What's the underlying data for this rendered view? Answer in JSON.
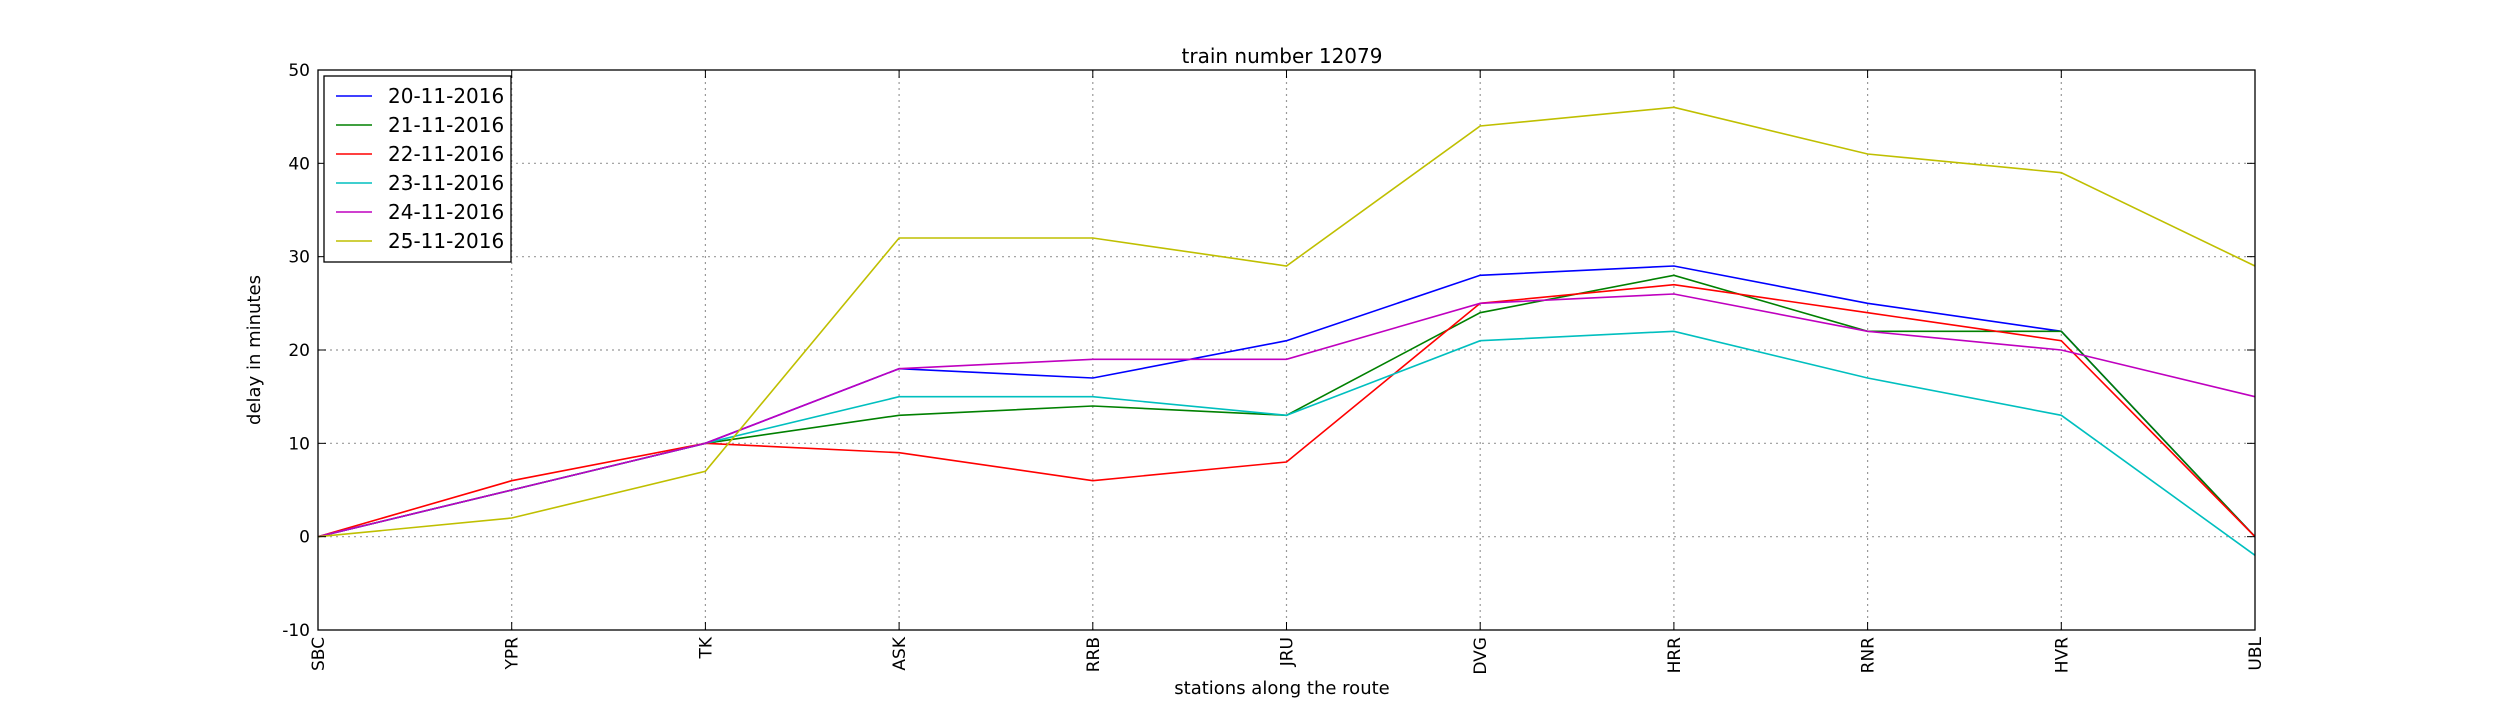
{
  "chart_data": {
    "type": "line",
    "title": "train number 12079",
    "xlabel": "stations along the route",
    "ylabel": "delay in minutes",
    "categories": [
      "SBC",
      "YPR",
      "TK",
      "ASK",
      "RRB",
      "JRU",
      "DVG",
      "HRR",
      "RNR",
      "HVR",
      "UBL"
    ],
    "ylim": [
      -10,
      50
    ],
    "yticks": [
      -10,
      0,
      10,
      20,
      30,
      40,
      50
    ],
    "grid": true,
    "legend_position": "top-left",
    "series": [
      {
        "name": "20-11-2016",
        "color": "#0000ff",
        "values": [
          0,
          5,
          10,
          18,
          17,
          21,
          28,
          29,
          25,
          22,
          0
        ]
      },
      {
        "name": "21-11-2016",
        "color": "#008000",
        "values": [
          0,
          5,
          10,
          13,
          14,
          13,
          24,
          28,
          22,
          22,
          0
        ]
      },
      {
        "name": "22-11-2016",
        "color": "#ff0000",
        "values": [
          0,
          6,
          10,
          9,
          6,
          8,
          25,
          27,
          24,
          21,
          0
        ]
      },
      {
        "name": "23-11-2016",
        "color": "#00bfbf",
        "values": [
          0,
          5,
          10,
          15,
          15,
          13,
          21,
          22,
          17,
          13,
          -2
        ]
      },
      {
        "name": "24-11-2016",
        "color": "#bf00bf",
        "values": [
          0,
          5,
          10,
          18,
          19,
          19,
          25,
          26,
          22,
          20,
          15
        ]
      },
      {
        "name": "25-11-2016",
        "color": "#bfbf00",
        "values": [
          0,
          2,
          7,
          32,
          32,
          29,
          44,
          46,
          41,
          39,
          29
        ]
      }
    ]
  }
}
